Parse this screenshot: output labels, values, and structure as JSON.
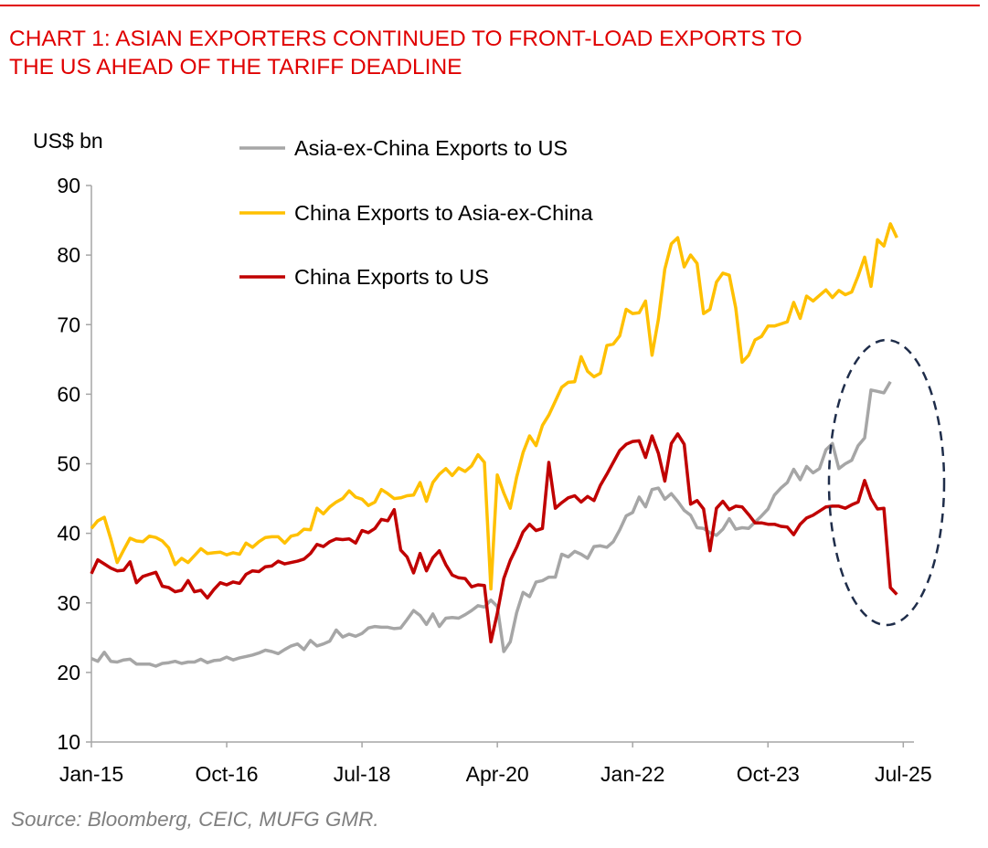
{
  "header": {
    "title_line1": "CHART 1: ASIAN EXPORTERS CONTINUED TO FRONT-LOAD EXPORTS TO",
    "title_line2": "THE US AHEAD OF THE TARIFF DEADLINE"
  },
  "footer": {
    "source": "Source: Bloomberg, CEIC, MUFG GMR."
  },
  "chart_data": {
    "type": "line",
    "title": "CHART 1: ASIAN EXPORTERS CONTINUED TO FRONT-LOAD EXPORTS TO THE US AHEAD OF THE TARIFF DEADLINE",
    "ylabel": "US$ bn",
    "xlabel": "",
    "x_frequency": "monthly",
    "x_start": "Jan-15",
    "ylim": [
      10,
      90
    ],
    "yticks": [
      10,
      20,
      30,
      40,
      50,
      60,
      70,
      80,
      90
    ],
    "xticks": [
      {
        "label": "Jan-15",
        "index": 0
      },
      {
        "label": "Oct-16",
        "index": 21
      },
      {
        "label": "Jul-18",
        "index": 42
      },
      {
        "label": "Apr-20",
        "index": 63
      },
      {
        "label": "Jan-22",
        "index": 84
      },
      {
        "label": "Oct-23",
        "index": 105
      },
      {
        "label": "Jul-25",
        "index": 126
      }
    ],
    "grid": false,
    "legend_position": "top-left",
    "annotation": {
      "type": "dashed-ellipse",
      "color": "#1f2d4a",
      "around": "latest months (2025)"
    },
    "series": [
      {
        "name": "Asia-ex-China Exports to US",
        "color": "#a6a6a6",
        "values": [
          22.0,
          21.6,
          22.9,
          21.6,
          21.5,
          21.8,
          21.9,
          21.2,
          21.2,
          21.2,
          20.9,
          21.3,
          21.4,
          21.6,
          21.3,
          21.5,
          21.5,
          21.9,
          21.4,
          21.7,
          21.8,
          22.2,
          21.8,
          22.1,
          22.3,
          22.5,
          22.8,
          23.2,
          23.0,
          22.7,
          23.3,
          23.8,
          24.1,
          23.3,
          24.6,
          23.8,
          24.1,
          24.5,
          26.1,
          25.1,
          25.5,
          25.2,
          25.6,
          26.4,
          26.6,
          26.5,
          26.5,
          26.3,
          26.4,
          27.6,
          28.9,
          28.2,
          26.9,
          28.4,
          26.6,
          27.8,
          27.9,
          27.8,
          28.3,
          28.9,
          29.6,
          29.4,
          30.4,
          29.5,
          23.0,
          24.4,
          28.6,
          31.5,
          30.9,
          33.0,
          33.2,
          33.7,
          33.7,
          37.0,
          36.6,
          37.4,
          37.0,
          36.4,
          38.1,
          38.2,
          38.0,
          38.8,
          40.5,
          42.5,
          43.0,
          45.2,
          43.8,
          46.3,
          46.5,
          44.9,
          45.7,
          44.6,
          43.3,
          42.6,
          40.8,
          40.7,
          40.1,
          39.7,
          40.6,
          42.1,
          40.6,
          40.8,
          40.7,
          41.6,
          42.5,
          43.5,
          45.5,
          46.5,
          47.3,
          49.2,
          47.7,
          49.6,
          48.7,
          49.3,
          52.0,
          52.9,
          49.3,
          50.0,
          50.5,
          52.6,
          53.7,
          60.6,
          60.4,
          60.2,
          61.8
        ]
      },
      {
        "name": "China Exports to Asia-ex-China",
        "color": "#ffc000",
        "values": [
          40.7,
          41.8,
          42.3,
          39.2,
          35.8,
          37.6,
          39.3,
          38.9,
          38.8,
          39.6,
          39.4,
          38.9,
          37.9,
          35.5,
          36.4,
          35.8,
          36.8,
          37.8,
          37.1,
          37.2,
          37.3,
          36.9,
          37.2,
          37.0,
          38.6,
          38.0,
          38.8,
          39.4,
          39.5,
          39.5,
          38.6,
          39.6,
          39.8,
          40.6,
          40.5,
          43.6,
          42.8,
          43.8,
          44.5,
          45.0,
          46.1,
          45.2,
          44.9,
          44.0,
          44.5,
          46.3,
          45.7,
          45.0,
          45.1,
          45.4,
          45.5,
          47.3,
          44.6,
          47.3,
          48.5,
          49.3,
          48.3,
          49.4,
          48.9,
          49.7,
          51.3,
          50.2,
          32.0,
          48.4,
          45.8,
          43.6,
          48.1,
          51.6,
          54.0,
          52.6,
          55.5,
          57.0,
          59.0,
          61.0,
          61.7,
          61.8,
          65.4,
          63.3,
          62.5,
          63.0,
          67.0,
          67.2,
          68.4,
          72.2,
          71.6,
          71.7,
          73.4,
          65.6,
          70.8,
          78.0,
          81.6,
          82.5,
          78.3,
          80.0,
          78.8,
          71.6,
          72.2,
          76.1,
          77.4,
          77.1,
          72.4,
          64.6,
          65.6,
          67.8,
          68.3,
          69.8,
          69.8,
          70.1,
          70.4,
          73.2,
          70.9,
          74.1,
          73.4,
          74.2,
          75.0,
          73.9,
          74.9,
          74.3,
          74.7,
          77.0,
          79.7,
          75.5,
          82.2,
          81.3,
          84.5,
          82.5
        ]
      },
      {
        "name": "China Exports to US",
        "color": "#c00000",
        "values": [
          34.2,
          36.2,
          35.6,
          35.0,
          34.6,
          34.7,
          35.9,
          32.9,
          33.8,
          34.1,
          34.4,
          32.4,
          32.2,
          31.6,
          31.8,
          33.2,
          31.6,
          31.8,
          30.7,
          31.9,
          32.9,
          32.6,
          33.0,
          32.8,
          34.1,
          34.6,
          34.5,
          35.2,
          35.3,
          36.0,
          35.6,
          35.8,
          36.0,
          36.3,
          37.1,
          38.4,
          38.1,
          38.8,
          39.2,
          39.1,
          39.2,
          38.6,
          40.4,
          40.1,
          40.7,
          42.0,
          41.8,
          43.4,
          37.6,
          36.6,
          34.3,
          37.1,
          34.6,
          36.5,
          37.5,
          35.5,
          34.0,
          33.6,
          33.5,
          32.3,
          32.6,
          32.5,
          24.4,
          28.5,
          33.5,
          36.1,
          38.0,
          40.2,
          41.3,
          40.4,
          40.7,
          50.2,
          43.6,
          44.4,
          45.1,
          45.4,
          44.5,
          45.3,
          44.7,
          46.9,
          48.5,
          50.2,
          51.9,
          52.8,
          53.2,
          53.3,
          50.9,
          54.0,
          51.5,
          47.5,
          52.9,
          54.3,
          52.8,
          44.2,
          44.7,
          43.5,
          37.5,
          43.6,
          44.6,
          43.4,
          43.9,
          43.8,
          42.7,
          41.5,
          41.5,
          41.3,
          41.3,
          41.0,
          40.9,
          39.8,
          41.3,
          42.2,
          42.6,
          43.2,
          43.8,
          43.9,
          43.9,
          43.6,
          44.1,
          44.5,
          47.6,
          45.0,
          43.5,
          43.6,
          32.2,
          31.2
        ]
      }
    ]
  }
}
